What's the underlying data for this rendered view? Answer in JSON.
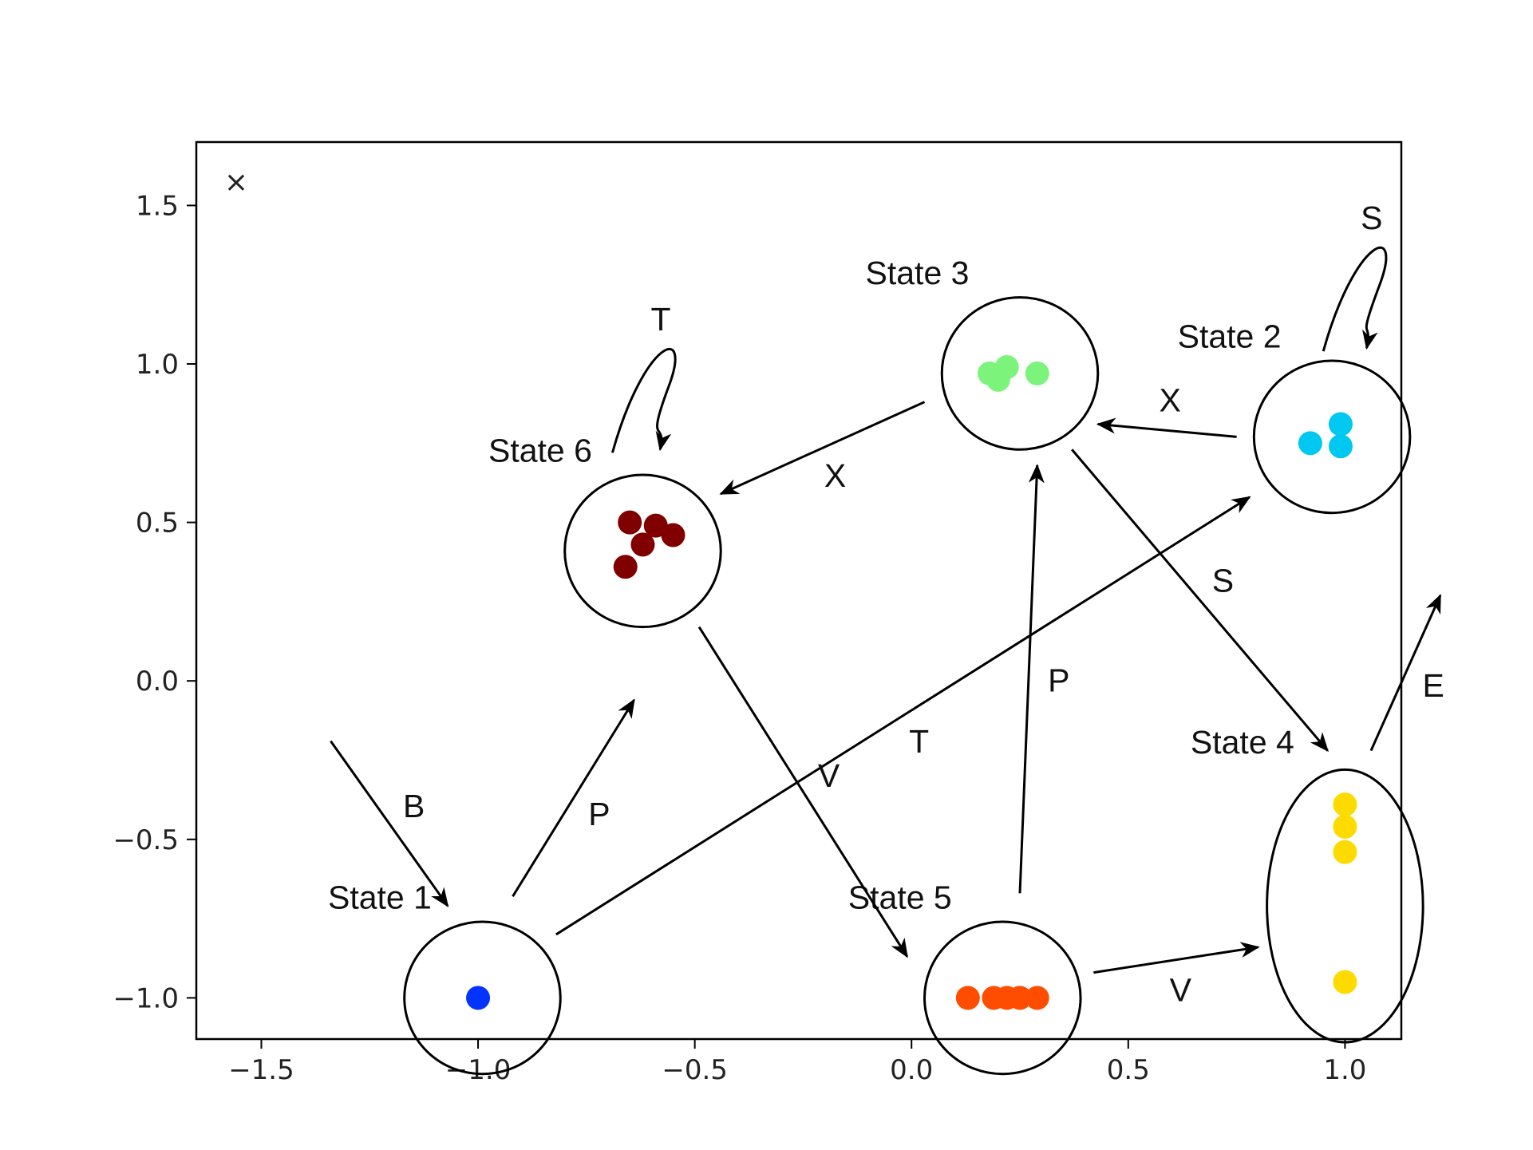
{
  "chart_data": {
    "type": "scatter",
    "title": "",
    "xlabel": "",
    "ylabel": "",
    "corner_label": "×",
    "xlim": [
      -1.65,
      1.13
    ],
    "ylim": [
      -1.13,
      1.7
    ],
    "xticks": [
      -1.5,
      -1.0,
      -0.5,
      0.0,
      0.5,
      1.0
    ],
    "xtick_labels": [
      "−1.5",
      "−1.0",
      "−0.5",
      "0.0",
      "0.5",
      "1.0"
    ],
    "yticks": [
      1.5,
      1.0,
      0.5,
      0.0,
      -0.5,
      -1.0
    ],
    "ytick_labels": [
      "1.5",
      "1.0",
      "0.5",
      "0.0",
      "−0.5",
      "−1.0"
    ],
    "grid": false,
    "series": [
      {
        "color": "#0433ff",
        "points": [
          [
            -1.0,
            -1.0
          ]
        ]
      },
      {
        "color": "#00c8f0",
        "points": [
          [
            0.92,
            0.75
          ],
          [
            0.99,
            0.81
          ],
          [
            0.99,
            0.74
          ]
        ]
      },
      {
        "color": "#7cf47c",
        "points": [
          [
            0.18,
            0.97
          ],
          [
            0.2,
            0.95
          ],
          [
            0.22,
            0.99
          ],
          [
            0.29,
            0.97
          ]
        ]
      },
      {
        "color": "#fddb00",
        "points": [
          [
            1.0,
            -0.39
          ],
          [
            1.0,
            -0.46
          ],
          [
            1.0,
            -0.54
          ],
          [
            1.0,
            -0.95
          ]
        ]
      },
      {
        "color": "#ff4d00",
        "points": [
          [
            0.13,
            -1.0
          ],
          [
            0.19,
            -1.0
          ],
          [
            0.22,
            -1.0
          ],
          [
            0.25,
            -1.0
          ],
          [
            0.29,
            -1.0
          ]
        ]
      },
      {
        "color": "#800000",
        "points": [
          [
            -0.65,
            0.5
          ],
          [
            -0.59,
            0.49
          ],
          [
            -0.55,
            0.46
          ],
          [
            -0.62,
            0.43
          ],
          [
            -0.66,
            0.36
          ]
        ]
      }
    ],
    "states": [
      {
        "label": "State 1",
        "cx": -0.99,
        "cy": -1.0,
        "rx": 0.18,
        "ry": 0.24
      },
      {
        "label": "State 2",
        "cx": 0.97,
        "cy": 0.77,
        "rx": 0.18,
        "ry": 0.24
      },
      {
        "label": "State 3",
        "cx": 0.25,
        "cy": 0.97,
        "rx": 0.18,
        "ry": 0.24
      },
      {
        "label": "State 4",
        "cx": 1.0,
        "cy": -0.71,
        "rx": 0.18,
        "ry": 0.43
      },
      {
        "label": "State 5",
        "cx": 0.21,
        "cy": -1.0,
        "rx": 0.18,
        "ry": 0.24
      },
      {
        "label": "State 6",
        "cx": -0.62,
        "cy": 0.41,
        "rx": 0.18,
        "ry": 0.24
      }
    ],
    "transitions": [
      {
        "label": "B",
        "from": [
          -1.34,
          -0.19
        ],
        "to": [
          -1.07,
          -0.71
        ]
      },
      {
        "label": "P",
        "from": [
          -0.92,
          -0.68
        ],
        "to": [
          -0.64,
          -0.06
        ]
      },
      {
        "label": "T",
        "from": [
          -0.82,
          -0.8
        ],
        "to": [
          0.78,
          0.58
        ]
      },
      {
        "label": "V",
        "from": [
          -0.49,
          0.17
        ],
        "to": [
          -0.01,
          -0.87
        ]
      },
      {
        "label": "P",
        "from": [
          0.25,
          -0.67
        ],
        "to": [
          0.29,
          0.68
        ]
      },
      {
        "label": "V",
        "from": [
          0.42,
          -0.92
        ],
        "to": [
          0.8,
          -0.84
        ]
      },
      {
        "label": "X",
        "from": [
          0.03,
          0.88
        ],
        "to": [
          -0.44,
          0.59
        ]
      },
      {
        "label": "X",
        "from": [
          0.75,
          0.77
        ],
        "to": [
          0.43,
          0.81
        ]
      },
      {
        "label": "S",
        "from": [
          0.37,
          0.73
        ],
        "to": [
          0.96,
          -0.22
        ]
      },
      {
        "label": "E",
        "from": [
          1.06,
          -0.22
        ],
        "to": [
          1.22,
          0.27
        ]
      },
      {
        "label": "T",
        "self_loop": true,
        "from": [
          -0.69,
          0.72
        ],
        "to": [
          -0.58,
          0.73
        ],
        "apex": [
          -0.56,
          0.98
        ]
      },
      {
        "label": "S",
        "self_loop": true,
        "from": [
          0.95,
          1.04
        ],
        "to": [
          1.05,
          1.05
        ],
        "apex": [
          1.08,
          1.3
        ]
      }
    ]
  }
}
